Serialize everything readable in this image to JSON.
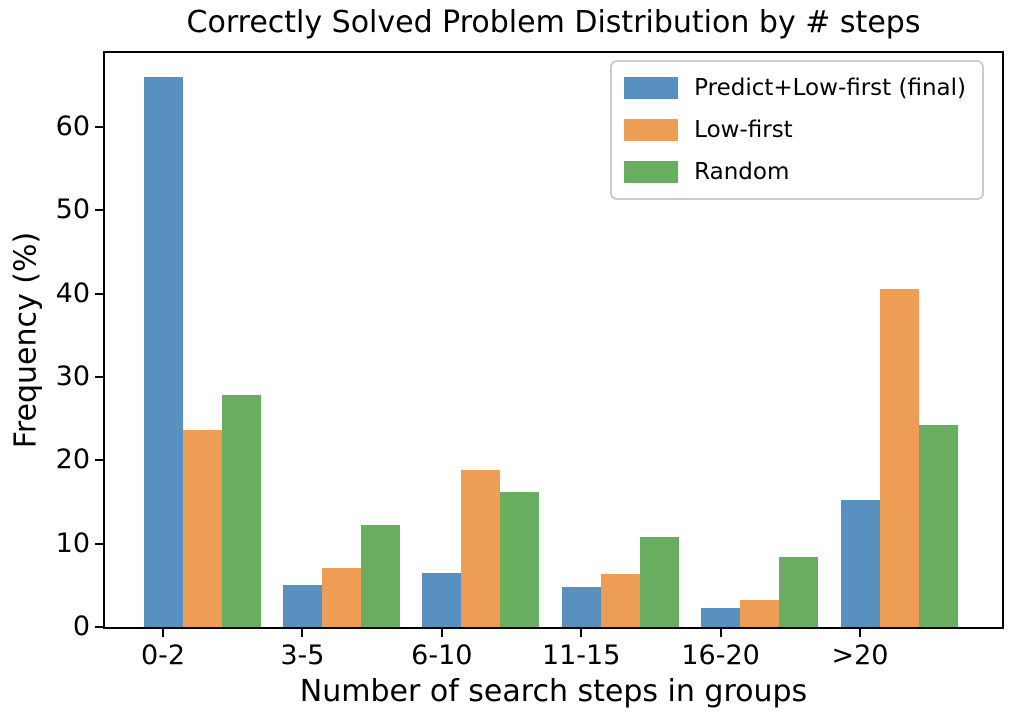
{
  "chart_data": {
    "type": "bar",
    "title": "Correctly Solved Problem Distribution by # steps",
    "xlabel": "Number of search steps in groups",
    "ylabel": "Frequency (%)",
    "categories": [
      "0-2",
      "3-5",
      "6-10",
      "11-15",
      "16-20",
      ">20"
    ],
    "series": [
      {
        "name": "Predict+Low-first (final)",
        "color": "#5890C0",
        "values": [
          66.0,
          5.0,
          6.5,
          4.8,
          2.3,
          15.2
        ]
      },
      {
        "name": "Low-first",
        "color": "#EE9D55",
        "values": [
          23.7,
          7.1,
          18.9,
          6.4,
          3.3,
          40.6
        ]
      },
      {
        "name": "Random",
        "color": "#69AD60",
        "values": [
          27.8,
          12.3,
          16.2,
          10.8,
          8.4,
          24.2
        ]
      }
    ],
    "yticks": [
      0,
      10,
      20,
      30,
      40,
      50,
      60
    ],
    "ylim": [
      0,
      68.9
    ],
    "grid": false,
    "legend_position": "upper right",
    "colors": {
      "spine": "#000000",
      "legend_border": "#cccccc",
      "background": "#ffffff"
    }
  }
}
